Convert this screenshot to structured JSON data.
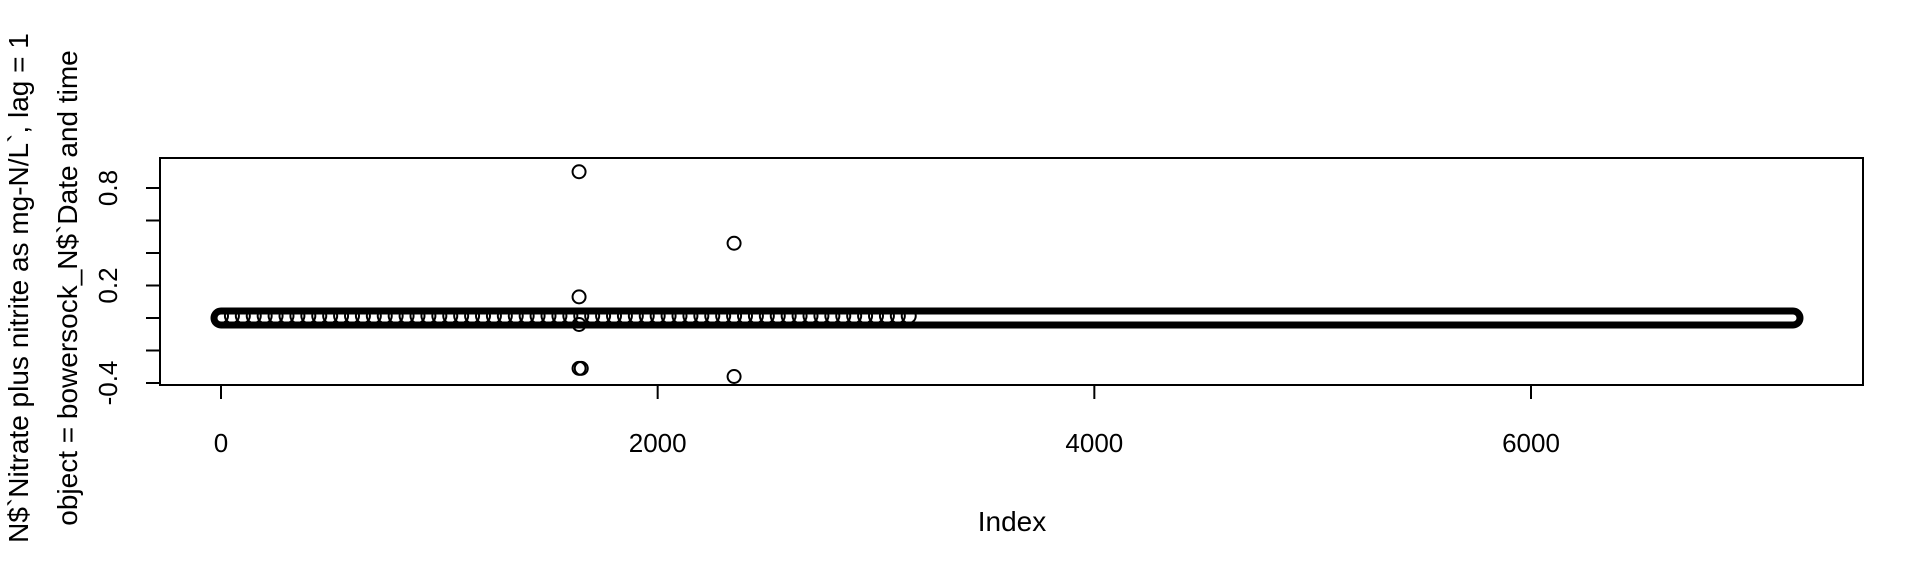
{
  "chart_data": {
    "type": "scatter",
    "title": "",
    "xlabel": "Index",
    "ylabel_lines": [
      "N$`Nitrate plus nitrite as mg-N/L`, lag = 1",
      "object = bowersock_N$`Date and time"
    ],
    "xlim": [
      0,
      7200
    ],
    "ylim": [
      -0.4,
      0.9
    ],
    "xticks": [
      "0",
      "2000",
      "4000",
      "6000"
    ],
    "xtick_values": [
      0,
      2000,
      4000,
      6000
    ],
    "yticks": [
      "-0.4",
      "0.2",
      "0.8"
    ],
    "ytick_values": [
      -0.4,
      -0.2,
      0,
      0.2,
      0.4,
      0.6,
      0.8
    ],
    "ytick_labeled_values": [
      -0.4,
      0.2,
      0.8
    ],
    "marker": "open-circle",
    "dense_band": {
      "y": 0.0,
      "x_start": 0,
      "x_end": 7200,
      "heavy_until": 3150
    },
    "outliers": [
      {
        "x": 1640,
        "y": 0.9
      },
      {
        "x": 1640,
        "y": 0.13
      },
      {
        "x": 1640,
        "y": -0.04
      },
      {
        "x": 1640,
        "y": -0.31
      },
      {
        "x": 1650,
        "y": -0.31
      },
      {
        "x": 2350,
        "y": 0.46
      },
      {
        "x": 2350,
        "y": -0.36
      }
    ]
  }
}
